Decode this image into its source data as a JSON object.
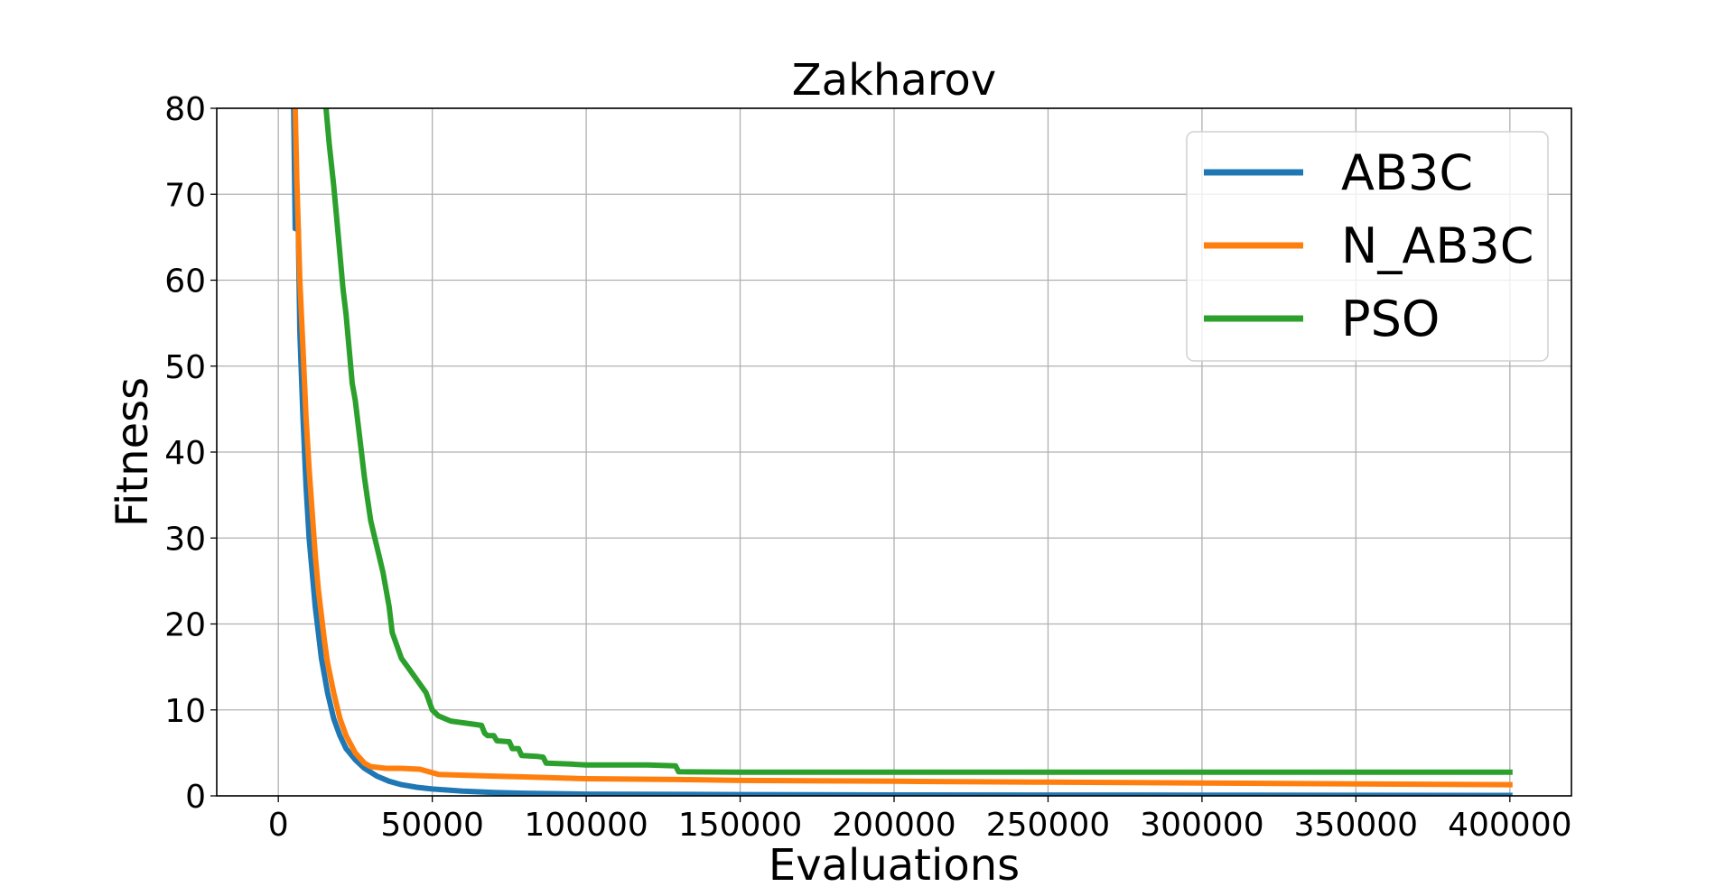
{
  "chart_data": {
    "type": "line",
    "title": "Zakharov",
    "xlabel": "Evaluations",
    "ylabel": "Fitness",
    "xlim": [
      -20000,
      420000
    ],
    "ylim": [
      0,
      80
    ],
    "xticks": [
      0,
      50000,
      100000,
      150000,
      200000,
      250000,
      300000,
      350000,
      400000
    ],
    "xtick_labels": [
      "0",
      "50000",
      "100000",
      "150000",
      "200000",
      "250000",
      "300000",
      "350000",
      "400000"
    ],
    "yticks": [
      0,
      10,
      20,
      30,
      40,
      50,
      60,
      70,
      80
    ],
    "ytick_labels": [
      "0",
      "10",
      "20",
      "30",
      "40",
      "50",
      "60",
      "70",
      "80"
    ],
    "grid": true,
    "legend_position": "top-right",
    "series": [
      {
        "name": "AB3C",
        "color": "#1f77b4",
        "points": [
          [
            5000,
            80
          ],
          [
            5500,
            66
          ],
          [
            6500,
            66
          ],
          [
            7000,
            54
          ],
          [
            8000,
            44
          ],
          [
            9000,
            36
          ],
          [
            10000,
            30
          ],
          [
            11000,
            26
          ],
          [
            12000,
            22
          ],
          [
            13000,
            19
          ],
          [
            14000,
            16
          ],
          [
            15000,
            14
          ],
          [
            16000,
            12
          ],
          [
            18000,
            9
          ],
          [
            20000,
            7
          ],
          [
            22000,
            5.5
          ],
          [
            25000,
            4.2
          ],
          [
            28000,
            3.2
          ],
          [
            32000,
            2.3
          ],
          [
            36000,
            1.7
          ],
          [
            40000,
            1.3
          ],
          [
            45000,
            1.0
          ],
          [
            50000,
            0.8
          ],
          [
            60000,
            0.55
          ],
          [
            70000,
            0.4
          ],
          [
            80000,
            0.3
          ],
          [
            100000,
            0.2
          ],
          [
            150000,
            0.15
          ],
          [
            200000,
            0.1
          ],
          [
            300000,
            0.08
          ],
          [
            400000,
            0.05
          ]
        ]
      },
      {
        "name": "N_AB3C",
        "color": "#ff7f0e",
        "points": [
          [
            5500,
            80
          ],
          [
            6000,
            72
          ],
          [
            6500,
            66
          ],
          [
            7000,
            60
          ],
          [
            8000,
            52
          ],
          [
            9000,
            44
          ],
          [
            10000,
            38
          ],
          [
            11000,
            33
          ],
          [
            12000,
            28
          ],
          [
            13000,
            24
          ],
          [
            14000,
            21
          ],
          [
            15000,
            18
          ],
          [
            16000,
            15.5
          ],
          [
            18000,
            12
          ],
          [
            20000,
            9
          ],
          [
            22000,
            7
          ],
          [
            25000,
            5
          ],
          [
            28000,
            3.8
          ],
          [
            30000,
            3.4
          ],
          [
            35000,
            3.2
          ],
          [
            40000,
            3.2
          ],
          [
            46000,
            3.1
          ],
          [
            48000,
            2.9
          ],
          [
            50000,
            2.7
          ],
          [
            52000,
            2.5
          ],
          [
            60000,
            2.4
          ],
          [
            70000,
            2.3
          ],
          [
            80000,
            2.2
          ],
          [
            100000,
            2.0
          ],
          [
            130000,
            1.9
          ],
          [
            150000,
            1.8
          ],
          [
            200000,
            1.7
          ],
          [
            250000,
            1.6
          ],
          [
            300000,
            1.5
          ],
          [
            350000,
            1.4
          ],
          [
            400000,
            1.3
          ]
        ]
      },
      {
        "name": "PSO",
        "color": "#2ca02c",
        "points": [
          [
            15500,
            80
          ],
          [
            16500,
            76
          ],
          [
            18000,
            71
          ],
          [
            19000,
            67
          ],
          [
            20000,
            63
          ],
          [
            21000,
            59
          ],
          [
            22000,
            56
          ],
          [
            23000,
            52
          ],
          [
            24000,
            48
          ],
          [
            25000,
            46
          ],
          [
            26000,
            43
          ],
          [
            27000,
            40
          ],
          [
            28000,
            37
          ],
          [
            29000,
            34.5
          ],
          [
            30000,
            32
          ],
          [
            31000,
            30.5
          ],
          [
            32000,
            29
          ],
          [
            33000,
            27.5
          ],
          [
            34000,
            26
          ],
          [
            35000,
            24
          ],
          [
            36000,
            22
          ],
          [
            37000,
            19
          ],
          [
            38000,
            18
          ],
          [
            40000,
            16
          ],
          [
            42000,
            15
          ],
          [
            44000,
            14
          ],
          [
            46000,
            13
          ],
          [
            48000,
            12
          ],
          [
            49000,
            11
          ],
          [
            50000,
            10
          ],
          [
            52000,
            9.3
          ],
          [
            54000,
            9.0
          ],
          [
            56000,
            8.7
          ],
          [
            60000,
            8.5
          ],
          [
            64000,
            8.3
          ],
          [
            66000,
            8.2
          ],
          [
            67000,
            7.3
          ],
          [
            68000,
            7.0
          ],
          [
            70000,
            7.0
          ],
          [
            71000,
            6.4
          ],
          [
            75000,
            6.3
          ],
          [
            76000,
            5.5
          ],
          [
            78000,
            5.5
          ],
          [
            79000,
            4.7
          ],
          [
            84000,
            4.6
          ],
          [
            86000,
            4.5
          ],
          [
            87000,
            3.8
          ],
          [
            95000,
            3.7
          ],
          [
            100000,
            3.6
          ],
          [
            120000,
            3.6
          ],
          [
            129000,
            3.5
          ],
          [
            130000,
            2.8
          ],
          [
            150000,
            2.75
          ],
          [
            200000,
            2.75
          ],
          [
            300000,
            2.75
          ],
          [
            400000,
            2.75
          ]
        ]
      }
    ]
  }
}
